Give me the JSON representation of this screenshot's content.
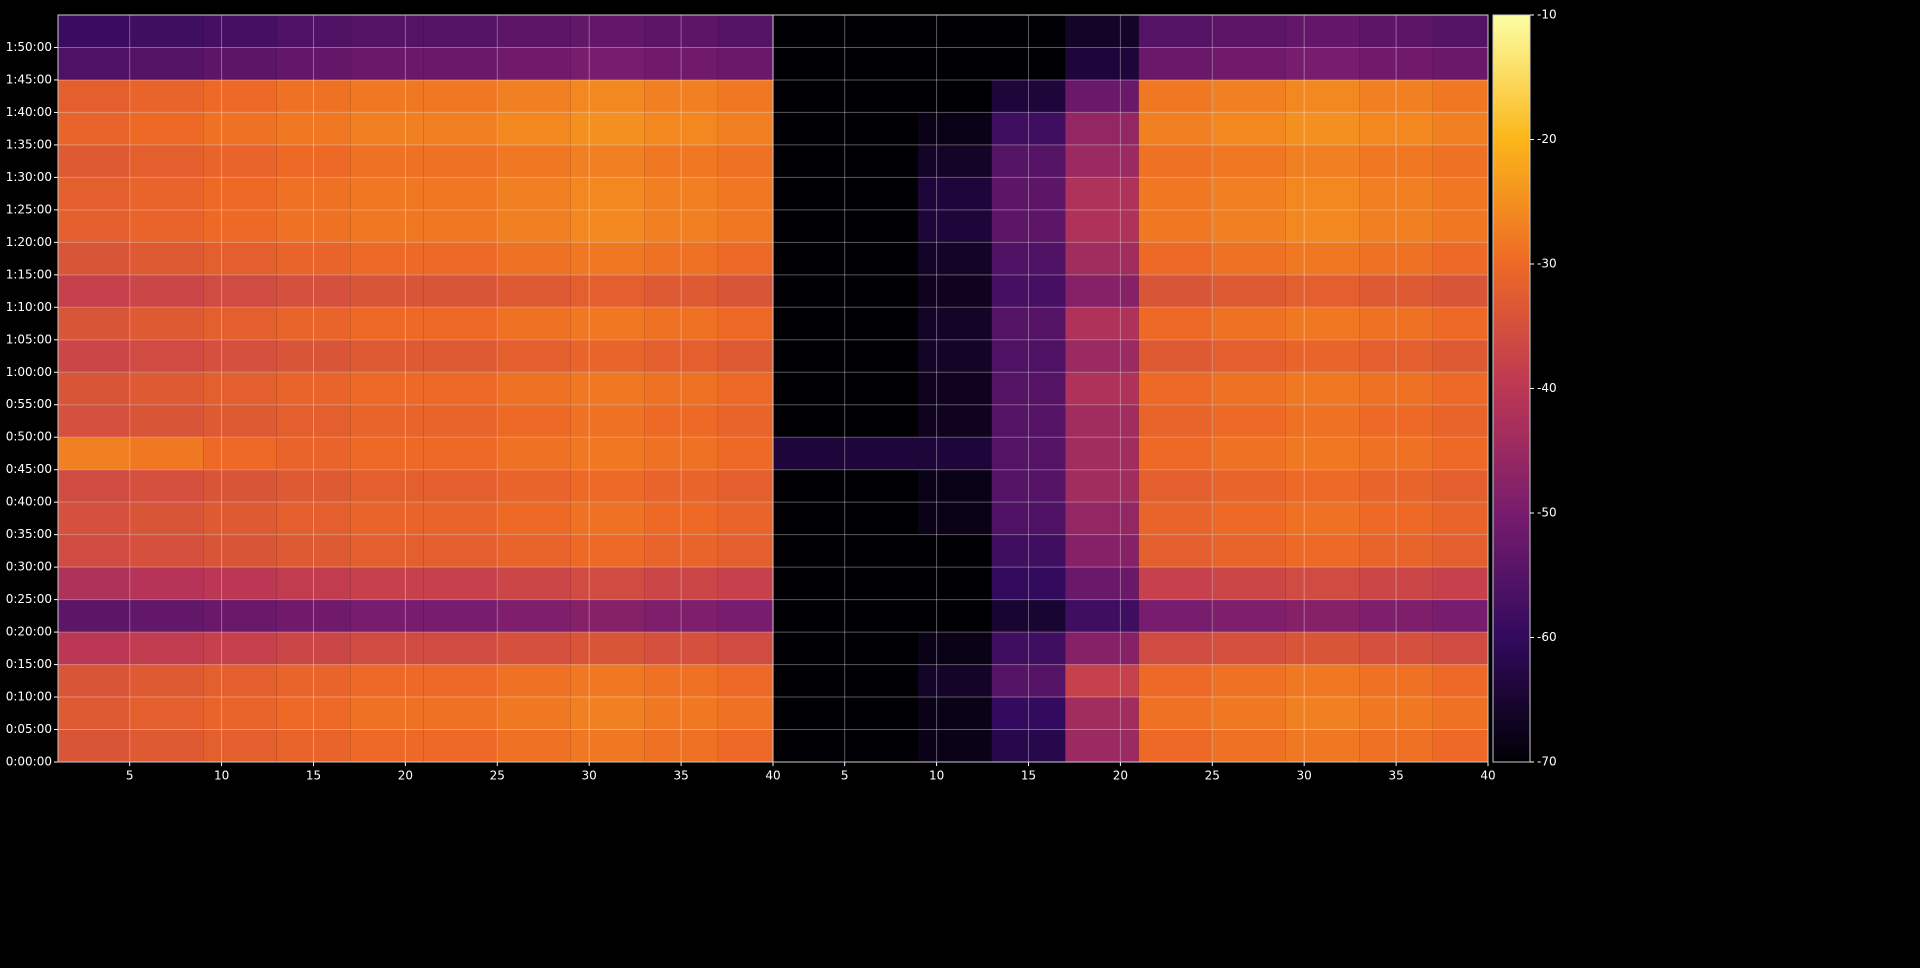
{
  "chart_data": [
    {
      "type": "heatmap",
      "xbins": [
        1.1,
        5,
        9,
        13,
        17,
        21,
        25,
        29,
        33,
        37,
        40
      ],
      "ybins": [
        0,
        300,
        600,
        900,
        1200,
        1500,
        1800,
        2100,
        2400,
        2700,
        3000,
        3300,
        3600,
        3900,
        4200,
        4500,
        4800,
        5100,
        5400,
        5700,
        6000,
        6300,
        6600,
        6900
      ],
      "xlim": [
        1.1,
        40
      ],
      "xticks": [
        5,
        10,
        15,
        20,
        25,
        30,
        35,
        40
      ],
      "ylim": [
        0,
        6900
      ],
      "yticks": [
        {
          "value": 0,
          "label": "0:00:00"
        },
        {
          "value": 300,
          "label": "0:05:00"
        },
        {
          "value": 600,
          "label": "0:10:00"
        },
        {
          "value": 900,
          "label": "0:15:00"
        },
        {
          "value": 1200,
          "label": "0:20:00"
        },
        {
          "value": 1500,
          "label": "0:25:00"
        },
        {
          "value": 1800,
          "label": "0:30:00"
        },
        {
          "value": 2100,
          "label": "0:35:00"
        },
        {
          "value": 2400,
          "label": "0:40:00"
        },
        {
          "value": 2700,
          "label": "0:45:00"
        },
        {
          "value": 3000,
          "label": "0:50:00"
        },
        {
          "value": 3300,
          "label": "0:55:00"
        },
        {
          "value": 3600,
          "label": "1:00:00"
        },
        {
          "value": 3900,
          "label": "1:05:00"
        },
        {
          "value": 4200,
          "label": "1:10:00"
        },
        {
          "value": 4500,
          "label": "1:15:00"
        },
        {
          "value": 4800,
          "label": "1:20:00"
        },
        {
          "value": 5100,
          "label": "1:25:00"
        },
        {
          "value": 5400,
          "label": "1:30:00"
        },
        {
          "value": 5700,
          "label": "1:35:00"
        },
        {
          "value": 6000,
          "label": "1:40:00"
        },
        {
          "value": 6300,
          "label": "1:45:00"
        },
        {
          "value": 6600,
          "label": "1:50:00"
        }
      ],
      "grid": true,
      "values": [
        [
          -34,
          -33,
          -32,
          -31,
          -30,
          -30,
          -29,
          -28,
          -29,
          -30
        ],
        [
          -33,
          -32,
          -31,
          -30,
          -29,
          -29,
          -28,
          -27,
          -28,
          -29
        ],
        [
          -34,
          -33,
          -32,
          -31,
          -30,
          -30,
          -29,
          -28,
          -29,
          -30
        ],
        [
          -40,
          -39,
          -38,
          -37,
          -36,
          -36,
          -35,
          -34,
          -35,
          -36
        ],
        [
          -54,
          -53,
          -52,
          -51,
          -50,
          -50,
          -49,
          -48,
          -49,
          -50
        ],
        [
          -42,
          -41,
          -40,
          -39,
          -38,
          -38,
          -37,
          -36,
          -37,
          -38
        ],
        [
          -36,
          -35,
          -34,
          -33,
          -32,
          -32,
          -31,
          -30,
          -31,
          -32
        ],
        [
          -35,
          -34,
          -33,
          -32,
          -31,
          -31,
          -30,
          -29,
          -30,
          -31
        ],
        [
          -36,
          -35,
          -34,
          -33,
          -32,
          -32,
          -31,
          -30,
          -31,
          -32
        ],
        [
          -27,
          -28,
          -30,
          -31,
          -30,
          -30,
          -29,
          -28,
          -29,
          -30
        ],
        [
          -35,
          -34,
          -33,
          -32,
          -31,
          -31,
          -30,
          -29,
          -30,
          -31
        ],
        [
          -34,
          -33,
          -32,
          -31,
          -30,
          -30,
          -29,
          -28,
          -29,
          -30
        ],
        [
          -37,
          -36,
          -35,
          -34,
          -33,
          -33,
          -32,
          -31,
          -32,
          -33
        ],
        [
          -34,
          -33,
          -32,
          -31,
          -30,
          -30,
          -29,
          -28,
          -29,
          -30
        ],
        [
          -38,
          -37,
          -36,
          -35,
          -34,
          -34,
          -33,
          -32,
          -33,
          -34
        ],
        [
          -34,
          -33,
          -32,
          -31,
          -30,
          -30,
          -29,
          -28,
          -29,
          -30
        ],
        [
          -32,
          -31,
          -30,
          -29,
          -28,
          -28,
          -27,
          -26,
          -27,
          -28
        ],
        [
          -32,
          -31,
          -30,
          -29,
          -28,
          -28,
          -27,
          -26,
          -27,
          -28
        ],
        [
          -33,
          -32,
          -31,
          -30,
          -29,
          -29,
          -28,
          -27,
          -28,
          -29
        ],
        [
          -31,
          -30,
          -29,
          -28,
          -27,
          -27,
          -26,
          -25,
          -26,
          -27
        ],
        [
          -32,
          -31,
          -30,
          -29,
          -28,
          -28,
          -27,
          -26,
          -27,
          -28
        ],
        [
          -56,
          -55,
          -54,
          -53,
          -52,
          -52,
          -51,
          -50,
          -51,
          -52
        ],
        [
          -59,
          -58,
          -57,
          -56,
          -55,
          -55,
          -54,
          -53,
          -54,
          -55
        ]
      ]
    },
    {
      "type": "heatmap",
      "xbins": [
        1.1,
        5,
        9,
        13,
        17,
        21,
        25,
        29,
        33,
        37,
        40
      ],
      "xlim": [
        1.1,
        40
      ],
      "xticks": [
        5,
        10,
        15,
        20,
        25,
        30,
        35,
        40
      ],
      "values": [
        [
          -70,
          -70,
          -68,
          -62,
          -45,
          -30,
          -29,
          -28,
          -29,
          -30
        ],
        [
          -70,
          -70,
          -68,
          -60,
          -44,
          -29,
          -28,
          -27,
          -28,
          -29
        ],
        [
          -70,
          -70,
          -66,
          -55,
          -38,
          -30,
          -29,
          -28,
          -29,
          -30
        ],
        [
          -70,
          -70,
          -68,
          -58,
          -48,
          -36,
          -35,
          -34,
          -35,
          -36
        ],
        [
          -70,
          -70,
          -70,
          -65,
          -58,
          -50,
          -49,
          -48,
          -49,
          -50
        ],
        [
          -70,
          -70,
          -70,
          -60,
          -52,
          -38,
          -37,
          -36,
          -37,
          -38
        ],
        [
          -70,
          -70,
          -70,
          -58,
          -48,
          -32,
          -31,
          -30,
          -31,
          -32
        ],
        [
          -70,
          -70,
          -68,
          -56,
          -46,
          -31,
          -30,
          -29,
          -30,
          -31
        ],
        [
          -70,
          -70,
          -68,
          -55,
          -44,
          -32,
          -31,
          -30,
          -31,
          -32
        ],
        [
          -64,
          -64,
          -64,
          -55,
          -44,
          -30,
          -29,
          -28,
          -29,
          -30
        ],
        [
          -70,
          -70,
          -67,
          -55,
          -44,
          -31,
          -30,
          -29,
          -30,
          -31
        ],
        [
          -70,
          -70,
          -67,
          -55,
          -42,
          -30,
          -29,
          -28,
          -29,
          -30
        ],
        [
          -70,
          -70,
          -66,
          -56,
          -45,
          -33,
          -32,
          -31,
          -32,
          -33
        ],
        [
          -70,
          -70,
          -66,
          -55,
          -42,
          -30,
          -29,
          -28,
          -29,
          -30
        ],
        [
          -70,
          -70,
          -67,
          -57,
          -48,
          -34,
          -33,
          -32,
          -33,
          -34
        ],
        [
          -70,
          -70,
          -66,
          -56,
          -44,
          -30,
          -29,
          -28,
          -29,
          -30
        ],
        [
          -70,
          -70,
          -64,
          -54,
          -42,
          -28,
          -27,
          -26,
          -27,
          -28
        ],
        [
          -70,
          -70,
          -64,
          -54,
          -42,
          -28,
          -27,
          -26,
          -27,
          -28
        ],
        [
          -70,
          -70,
          -66,
          -55,
          -45,
          -29,
          -28,
          -27,
          -28,
          -29
        ],
        [
          -70,
          -70,
          -68,
          -58,
          -46,
          -27,
          -26,
          -25,
          -26,
          -27
        ],
        [
          -70,
          -70,
          -70,
          -64,
          -52,
          -28,
          -27,
          -26,
          -27,
          -28
        ],
        [
          -70,
          -70,
          -70,
          -70,
          -64,
          -52,
          -51,
          -50,
          -51,
          -52
        ],
        [
          -70,
          -70,
          -70,
          -70,
          -66,
          -55,
          -54,
          -53,
          -54,
          -55
        ]
      ]
    }
  ],
  "colorbar": {
    "clim": [
      -70,
      -10
    ],
    "ticks": [
      -70,
      -60,
      -50,
      -40,
      -30,
      -20,
      -10
    ],
    "colormap": [
      "#000004",
      "#320a5e",
      "#781c6d",
      "#bc3754",
      "#ed6925",
      "#fbb61a",
      "#fcffa4"
    ]
  }
}
